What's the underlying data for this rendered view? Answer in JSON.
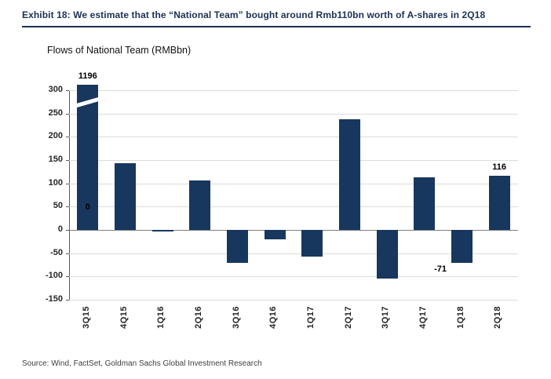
{
  "page": {
    "exhibit_title": "Exhibit 18: We estimate that the “National Team” bought around Rmb110bn worth of A-shares in 2Q18",
    "source_note": "Source: Wind, FactSet, Goldman Sachs Global Investment Research"
  },
  "chart_data": {
    "type": "bar",
    "title": "Flows of National Team (RMBbn)",
    "categories": [
      "3Q15",
      "4Q15",
      "1Q16",
      "2Q16",
      "3Q16",
      "4Q16",
      "1Q17",
      "2Q17",
      "3Q17",
      "4Q17",
      "1Q18",
      "2Q18"
    ],
    "values": [
      1196,
      143,
      -3,
      107,
      -70,
      -20,
      -57,
      238,
      -105,
      113,
      -71,
      116
    ],
    "xlabel": "",
    "ylabel": "",
    "ylim": [
      -150,
      300
    ],
    "ytick_step": 50,
    "grid": true,
    "legend": false,
    "axis_break_on_first_bar": true,
    "clipped_categories": [
      "3Q15"
    ],
    "data_labels": [
      {
        "category": "3Q15",
        "text": "1196",
        "position": "above"
      },
      {
        "category": "3Q15",
        "text": "0",
        "position": "inside"
      },
      {
        "category": "1Q18",
        "text": "-71",
        "position": "below-left"
      },
      {
        "category": "2Q18",
        "text": "116",
        "position": "above"
      }
    ],
    "bar_color": "#17375e"
  },
  "colors": {
    "accent_navy": "#1b3055",
    "bar_navy": "#17375e",
    "gridline_gray": "#dcdcdc",
    "zero_line_gray": "#808080"
  }
}
